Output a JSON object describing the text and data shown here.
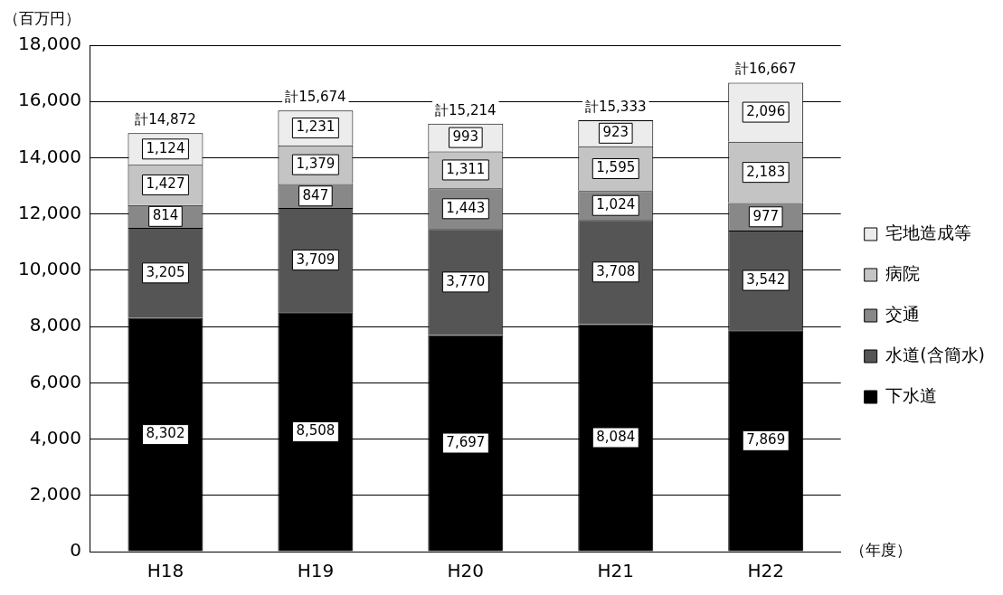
{
  "chart_data": {
    "type": "bar",
    "stacked": true,
    "ylabel": "（百万円）",
    "xlabel": "（年度）",
    "categories": [
      "H18",
      "H19",
      "H20",
      "H21",
      "H22"
    ],
    "series": [
      {
        "name": "下水道",
        "color": "#000000",
        "values": [
          8302,
          8508,
          7697,
          8084,
          7869
        ],
        "value_labels": [
          "8,302",
          "8,508",
          "7,697",
          "8,084",
          "7,869"
        ]
      },
      {
        "name": "水道(含簡水)",
        "color": "#555555",
        "values": [
          3205,
          3709,
          3770,
          3708,
          3542
        ],
        "value_labels": [
          "3,205",
          "3,709",
          "3,770",
          "3,708",
          "3,542"
        ]
      },
      {
        "name": "交通",
        "color": "#888888",
        "values": [
          814,
          847,
          1443,
          1024,
          977
        ],
        "value_labels": [
          "814",
          "847",
          "1,443",
          "1,024",
          "977"
        ]
      },
      {
        "name": "病院",
        "color": "#c4c4c4",
        "values": [
          1427,
          1379,
          1311,
          1595,
          2183
        ],
        "value_labels": [
          "1,427",
          "1,379",
          "1,311",
          "1,595",
          "2,183"
        ]
      },
      {
        "name": "宅地造成等",
        "color": "#ececec",
        "values": [
          1124,
          1231,
          993,
          923,
          2096
        ],
        "value_labels": [
          "1,124",
          "1,231",
          "993",
          "923",
          "2,096"
        ]
      }
    ],
    "totals": [
      "計14,872",
      "計15,674",
      "計15,214",
      "計15,333",
      "計16,667"
    ],
    "ylim": [
      0,
      18000
    ],
    "yticks": [
      0,
      {
        "value": 2000,
        "label": "2,000"
      },
      {
        "value": 4000,
        "label": "4,000"
      },
      {
        "value": 6000,
        "label": "6,000"
      },
      {
        "value": 8000,
        "label": "8,000"
      },
      {
        "value": 10000,
        "label": "10,000"
      },
      {
        "value": 12000,
        "label": "12,000"
      },
      {
        "value": 14000,
        "label": "14,000"
      },
      {
        "value": 16000,
        "label": "16,000"
      },
      {
        "value": 18000,
        "label": "18,000"
      }
    ],
    "grid": "y",
    "legend": "right"
  }
}
